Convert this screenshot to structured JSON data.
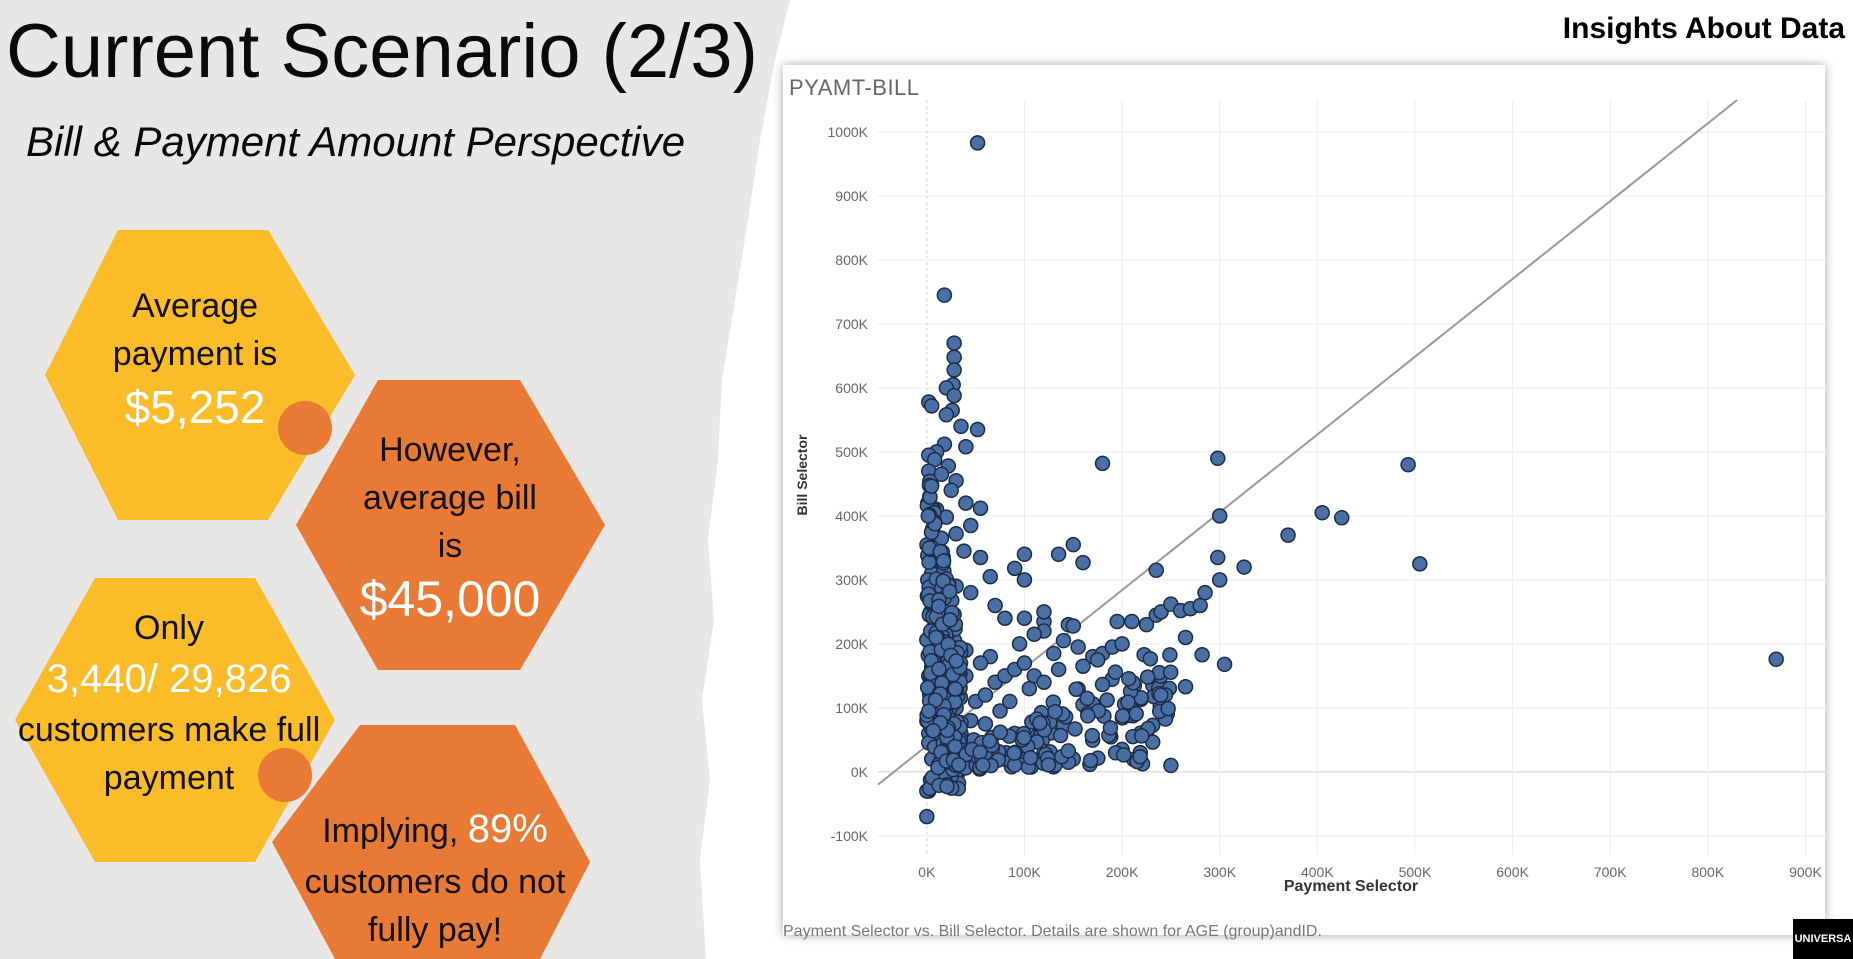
{
  "slide": {
    "title": "Current Scenario (2/3)",
    "subtitle": "Bill & Payment Amount Perspective",
    "insights_label": "Insights About Data",
    "logo_text": "UNIVERSA"
  },
  "hexagons": {
    "h1": {
      "line1": "Average",
      "line2": "payment is",
      "value": "$5,252",
      "color": "#fbbc2a"
    },
    "h2": {
      "line1": "However,",
      "line2": "average bill",
      "line3": "is",
      "value": "$45,000",
      "color": "#e97a36"
    },
    "h3": {
      "line1": "Only",
      "value": "3,440/ 29,826",
      "line2": "customers make full",
      "line3": "payment",
      "color": "#fbbc2a"
    },
    "h4": {
      "line1_prefix": "Implying, ",
      "value": "89%",
      "line2": "customers do not",
      "line3": "fully pay!",
      "color": "#e97a36"
    }
  },
  "chart_header": {
    "title": "PYAMT-BILL",
    "caption": "Payment Selector vs. Bill Selector. Details are shown for AGE (group)andID."
  },
  "chart_data": {
    "type": "scatter",
    "title": "PYAMT-BILL",
    "xlabel": "Payment Selector",
    "ylabel": "Bill Selector",
    "xlim": [
      -50000,
      920000
    ],
    "ylim": [
      -130000,
      1050000
    ],
    "x_ticks": [
      "0K",
      "100K",
      "200K",
      "300K",
      "400K",
      "500K",
      "600K",
      "700K",
      "800K",
      "900K"
    ],
    "x_tick_values": [
      0,
      100000,
      200000,
      300000,
      400000,
      500000,
      600000,
      700000,
      800000,
      900000
    ],
    "y_ticks": [
      "-100K",
      "0K",
      "100K",
      "200K",
      "300K",
      "400K",
      "500K",
      "600K",
      "700K",
      "800K",
      "900K",
      "1000K"
    ],
    "y_tick_values": [
      -100000,
      0,
      100000,
      200000,
      300000,
      400000,
      500000,
      600000,
      700000,
      800000,
      900000,
      1000000
    ],
    "reference_line": {
      "from": [
        -50000,
        -20000
      ],
      "to": [
        830000,
        1050000
      ]
    },
    "grid": true,
    "marker_color": "#4a6fa5",
    "points": [
      [
        52000,
        983000
      ],
      [
        18000,
        745000
      ],
      [
        28000,
        670000
      ],
      [
        28000,
        648000
      ],
      [
        28000,
        628000
      ],
      [
        27000,
        605000
      ],
      [
        20000,
        600000
      ],
      [
        28000,
        588000
      ],
      [
        2000,
        578000
      ],
      [
        5000,
        572000
      ],
      [
        26000,
        565000
      ],
      [
        20000,
        558000
      ],
      [
        35000,
        540000
      ],
      [
        52000,
        535000
      ],
      [
        40000,
        508000
      ],
      [
        18000,
        512000
      ],
      [
        10000,
        500000
      ],
      [
        2000,
        495000
      ],
      [
        8000,
        488000
      ],
      [
        22000,
        478000
      ],
      [
        2000,
        470000
      ],
      [
        15000,
        465000
      ],
      [
        30000,
        455000
      ],
      [
        5000,
        448000
      ],
      [
        25000,
        440000
      ],
      [
        40000,
        420000
      ],
      [
        55000,
        412000
      ],
      [
        10000,
        410000
      ],
      [
        2000,
        400000
      ],
      [
        20000,
        398000
      ],
      [
        45000,
        385000
      ],
      [
        6000,
        380000
      ],
      [
        30000,
        372000
      ],
      [
        15000,
        365000
      ],
      [
        2000,
        355000
      ],
      [
        38000,
        345000
      ],
      [
        55000,
        335000
      ],
      [
        100000,
        340000
      ],
      [
        90000,
        318000
      ],
      [
        135000,
        340000
      ],
      [
        150000,
        355000
      ],
      [
        160000,
        327000
      ],
      [
        65000,
        305000
      ],
      [
        100000,
        300000
      ],
      [
        20000,
        295000
      ],
      [
        45000,
        280000
      ],
      [
        70000,
        260000
      ],
      [
        80000,
        240000
      ],
      [
        100000,
        240000
      ],
      [
        120000,
        235000
      ],
      [
        120000,
        220000
      ],
      [
        145000,
        230000
      ],
      [
        150000,
        228000
      ],
      [
        120000,
        250000
      ],
      [
        110000,
        215000
      ],
      [
        95000,
        200000
      ],
      [
        140000,
        205000
      ],
      [
        155000,
        195000
      ],
      [
        130000,
        185000
      ],
      [
        170000,
        180000
      ],
      [
        180000,
        185000
      ],
      [
        190000,
        195000
      ],
      [
        200000,
        200000
      ],
      [
        195000,
        235000
      ],
      [
        210000,
        235000
      ],
      [
        225000,
        230000
      ],
      [
        235000,
        245000
      ],
      [
        240000,
        250000
      ],
      [
        250000,
        262000
      ],
      [
        260000,
        252000
      ],
      [
        270000,
        255000
      ],
      [
        280000,
        260000
      ],
      [
        285000,
        280000
      ],
      [
        300000,
        300000
      ],
      [
        298000,
        335000
      ],
      [
        300000,
        400000
      ],
      [
        298000,
        490000
      ],
      [
        325000,
        320000
      ],
      [
        370000,
        370000
      ],
      [
        405000,
        405000
      ],
      [
        425000,
        397000
      ],
      [
        493000,
        480000
      ],
      [
        505000,
        325000
      ],
      [
        870000,
        176000
      ],
      [
        180000,
        482000
      ],
      [
        235000,
        315000
      ],
      [
        265000,
        210000
      ],
      [
        265000,
        133000
      ],
      [
        282000,
        183000
      ],
      [
        305000,
        168000
      ],
      [
        160000,
        105000
      ],
      [
        140000,
        73000
      ],
      [
        112000,
        55000
      ],
      [
        90000,
        60000
      ],
      [
        95000,
        15000
      ],
      [
        80000,
        20000
      ],
      [
        60000,
        35000
      ],
      [
        55000,
        15000
      ],
      [
        150000,
        20000
      ],
      [
        145000,
        15000
      ],
      [
        200000,
        35000
      ],
      [
        225000,
        60000
      ],
      [
        250000,
        10000
      ],
      [
        0,
        -70000
      ],
      [
        2000,
        -30000
      ],
      [
        8000,
        -20000
      ],
      [
        15000,
        -10000
      ],
      [
        5000,
        20000
      ],
      [
        20000,
        40000
      ],
      [
        35000,
        60000
      ],
      [
        45000,
        80000
      ],
      [
        30000,
        100000
      ],
      [
        50000,
        110000
      ],
      [
        60000,
        120000
      ],
      [
        70000,
        140000
      ],
      [
        80000,
        150000
      ],
      [
        90000,
        160000
      ],
      [
        100000,
        170000
      ],
      [
        110000,
        150000
      ],
      [
        65000,
        180000
      ],
      [
        40000,
        190000
      ],
      [
        25000,
        210000
      ],
      [
        10000,
        230000
      ],
      [
        4000,
        250000
      ],
      [
        15000,
        270000
      ],
      [
        30000,
        290000
      ],
      [
        5000,
        310000
      ],
      [
        12000,
        330000
      ],
      [
        3000,
        340000
      ],
      [
        8000,
        120000
      ],
      [
        12000,
        90000
      ],
      [
        18000,
        60000
      ],
      [
        2000,
        150000
      ],
      [
        4000,
        200000
      ],
      [
        6000,
        280000
      ],
      [
        1000,
        420000
      ],
      [
        3000,
        430000
      ],
      [
        1000,
        300000
      ],
      [
        2000,
        60000
      ],
      [
        25000,
        130000
      ],
      [
        40000,
        150000
      ],
      [
        55000,
        170000
      ],
      [
        75000,
        95000
      ],
      [
        85000,
        110000
      ],
      [
        105000,
        130000
      ],
      [
        120000,
        140000
      ],
      [
        135000,
        160000
      ],
      [
        160000,
        165000
      ],
      [
        175000,
        175000
      ],
      [
        60000,
        75000
      ],
      [
        48000,
        50000
      ],
      [
        38000,
        30000
      ],
      [
        28000,
        25000
      ],
      [
        18000,
        5000
      ]
    ]
  }
}
